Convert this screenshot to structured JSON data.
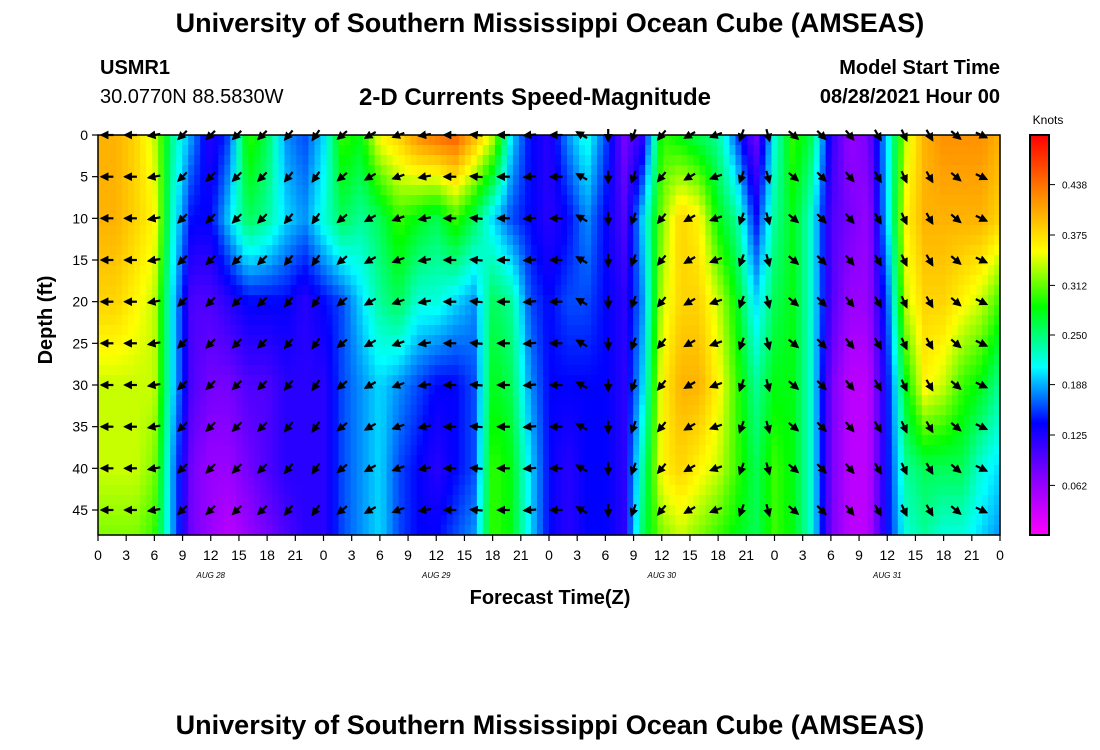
{
  "header": {
    "title": "University of Southern Mississippi Ocean Cube (AMSEAS)",
    "station": "USMR1",
    "coords": "30.0770N  88.5830W",
    "plot_title": "2-D Currents Speed-Magnitude",
    "start_label": "Model Start Time",
    "start_value": "08/28/2021 Hour 00"
  },
  "footer": {
    "title": "University of Southern Mississippi Ocean Cube (AMSEAS)"
  },
  "chart_data": {
    "type": "heatmap",
    "title": "2-D Currents Speed-Magnitude",
    "xlabel": "Forecast Time(Z)",
    "ylabel": "Depth (ft)",
    "x_tick_labels": [
      "0",
      "3",
      "6",
      "9",
      "12",
      "15",
      "18",
      "21",
      "0",
      "3",
      "6",
      "9",
      "12",
      "15",
      "18",
      "21",
      "0",
      "3",
      "6",
      "9",
      "12",
      "15",
      "18",
      "21",
      "0",
      "3",
      "6",
      "9",
      "12",
      "15",
      "18",
      "21",
      "0"
    ],
    "day_labels": [
      "AUG 28",
      "AUG 29",
      "AUG 30",
      "AUG 31"
    ],
    "y_ticks": [
      0,
      5,
      10,
      15,
      20,
      25,
      30,
      35,
      40,
      45
    ],
    "ylim": [
      0,
      48
    ],
    "xlim_hours": [
      0,
      96
    ],
    "colorbar": {
      "unit": "Knots",
      "min": 0,
      "max": 0.5,
      "ticks": [
        "0.438",
        "0.375",
        "0.312",
        "0.250",
        "0.188",
        "0.125",
        "0.062"
      ]
    },
    "speed_hours": [
      0,
      2,
      4,
      6,
      8,
      10,
      12,
      14,
      16,
      18,
      20,
      22,
      24,
      26,
      28,
      30,
      32,
      34,
      36,
      38,
      40,
      42,
      44,
      46,
      48,
      50,
      52,
      54,
      56,
      58,
      60,
      62,
      64,
      66,
      68,
      70,
      72,
      74,
      76,
      78,
      80,
      82,
      84,
      86,
      88,
      90,
      92,
      94,
      96
    ],
    "speed_depths": [
      0,
      10,
      20,
      30,
      40,
      48
    ],
    "speed_knots": [
      [
        0.4,
        0.4,
        0.38,
        0.34,
        0.24,
        0.18,
        0.12,
        0.16,
        0.3,
        0.26,
        0.18,
        0.16,
        0.2,
        0.3,
        0.28,
        0.36,
        0.38,
        0.42,
        0.44,
        0.45,
        0.4,
        0.34,
        0.2,
        0.14,
        0.12,
        0.18,
        0.22,
        0.16,
        0.08,
        0.12,
        0.3,
        0.28,
        0.26,
        0.24,
        0.16,
        0.08,
        0.22,
        0.3,
        0.26,
        0.12,
        0.06,
        0.08,
        0.2,
        0.34,
        0.4,
        0.42,
        0.42,
        0.42,
        0.4
      ],
      [
        0.4,
        0.4,
        0.38,
        0.36,
        0.22,
        0.14,
        0.14,
        0.2,
        0.26,
        0.24,
        0.2,
        0.18,
        0.22,
        0.26,
        0.24,
        0.26,
        0.3,
        0.28,
        0.26,
        0.3,
        0.26,
        0.2,
        0.16,
        0.14,
        0.12,
        0.14,
        0.18,
        0.14,
        0.1,
        0.2,
        0.32,
        0.38,
        0.36,
        0.28,
        0.24,
        0.14,
        0.24,
        0.28,
        0.22,
        0.1,
        0.08,
        0.06,
        0.2,
        0.36,
        0.4,
        0.4,
        0.4,
        0.4,
        0.38
      ],
      [
        0.38,
        0.38,
        0.36,
        0.34,
        0.2,
        0.1,
        0.1,
        0.12,
        0.14,
        0.14,
        0.14,
        0.12,
        0.14,
        0.16,
        0.2,
        0.24,
        0.26,
        0.22,
        0.22,
        0.2,
        0.18,
        0.26,
        0.24,
        0.16,
        0.14,
        0.16,
        0.16,
        0.14,
        0.12,
        0.18,
        0.34,
        0.38,
        0.38,
        0.34,
        0.28,
        0.2,
        0.26,
        0.28,
        0.22,
        0.1,
        0.06,
        0.06,
        0.16,
        0.34,
        0.38,
        0.38,
        0.36,
        0.34,
        0.3
      ],
      [
        0.34,
        0.34,
        0.34,
        0.34,
        0.2,
        0.1,
        0.08,
        0.08,
        0.1,
        0.1,
        0.12,
        0.12,
        0.12,
        0.16,
        0.18,
        0.2,
        0.18,
        0.16,
        0.14,
        0.14,
        0.16,
        0.28,
        0.26,
        0.18,
        0.14,
        0.14,
        0.14,
        0.14,
        0.12,
        0.2,
        0.36,
        0.4,
        0.4,
        0.36,
        0.3,
        0.24,
        0.28,
        0.28,
        0.22,
        0.08,
        0.04,
        0.04,
        0.14,
        0.28,
        0.36,
        0.34,
        0.3,
        0.28,
        0.24
      ],
      [
        0.34,
        0.34,
        0.34,
        0.32,
        0.18,
        0.08,
        0.06,
        0.06,
        0.08,
        0.1,
        0.12,
        0.12,
        0.12,
        0.16,
        0.18,
        0.2,
        0.16,
        0.14,
        0.12,
        0.14,
        0.16,
        0.3,
        0.28,
        0.2,
        0.14,
        0.12,
        0.14,
        0.14,
        0.12,
        0.24,
        0.36,
        0.38,
        0.36,
        0.34,
        0.3,
        0.26,
        0.3,
        0.28,
        0.22,
        0.08,
        0.04,
        0.04,
        0.14,
        0.24,
        0.26,
        0.26,
        0.26,
        0.22,
        0.2
      ],
      [
        0.32,
        0.32,
        0.32,
        0.3,
        0.18,
        0.08,
        0.06,
        0.04,
        0.06,
        0.08,
        0.1,
        0.12,
        0.12,
        0.16,
        0.18,
        0.2,
        0.16,
        0.14,
        0.14,
        0.16,
        0.18,
        0.3,
        0.28,
        0.2,
        0.14,
        0.12,
        0.14,
        0.14,
        0.12,
        0.26,
        0.32,
        0.34,
        0.32,
        0.3,
        0.28,
        0.26,
        0.3,
        0.28,
        0.22,
        0.08,
        0.04,
        0.04,
        0.14,
        0.22,
        0.24,
        0.22,
        0.22,
        0.2,
        0.18
      ]
    ],
    "arrow_hours": [
      1,
      3.5,
      6,
      9,
      12,
      14.8,
      17.5,
      20.3,
      23.2,
      26,
      29,
      32,
      34.8,
      37.5,
      40.3,
      43.2,
      46,
      48.8,
      51.5,
      54.3,
      57,
      60,
      63,
      65.8,
      68.5,
      71.3,
      74,
      77,
      80,
      83,
      85.8,
      88.5,
      91.3,
      94
    ],
    "arrow_depths": [
      0,
      5,
      10,
      15,
      20,
      25,
      30,
      35,
      40,
      45
    ],
    "arrow_dir_deg_by_hour": [
      270,
      270,
      260,
      225,
      225,
      225,
      225,
      220,
      215,
      230,
      240,
      250,
      260,
      270,
      275,
      270,
      265,
      270,
      300,
      180,
      200,
      220,
      240,
      250,
      200,
      165,
      130,
      135,
      140,
      150,
      155,
      150,
      130,
      115
    ]
  }
}
